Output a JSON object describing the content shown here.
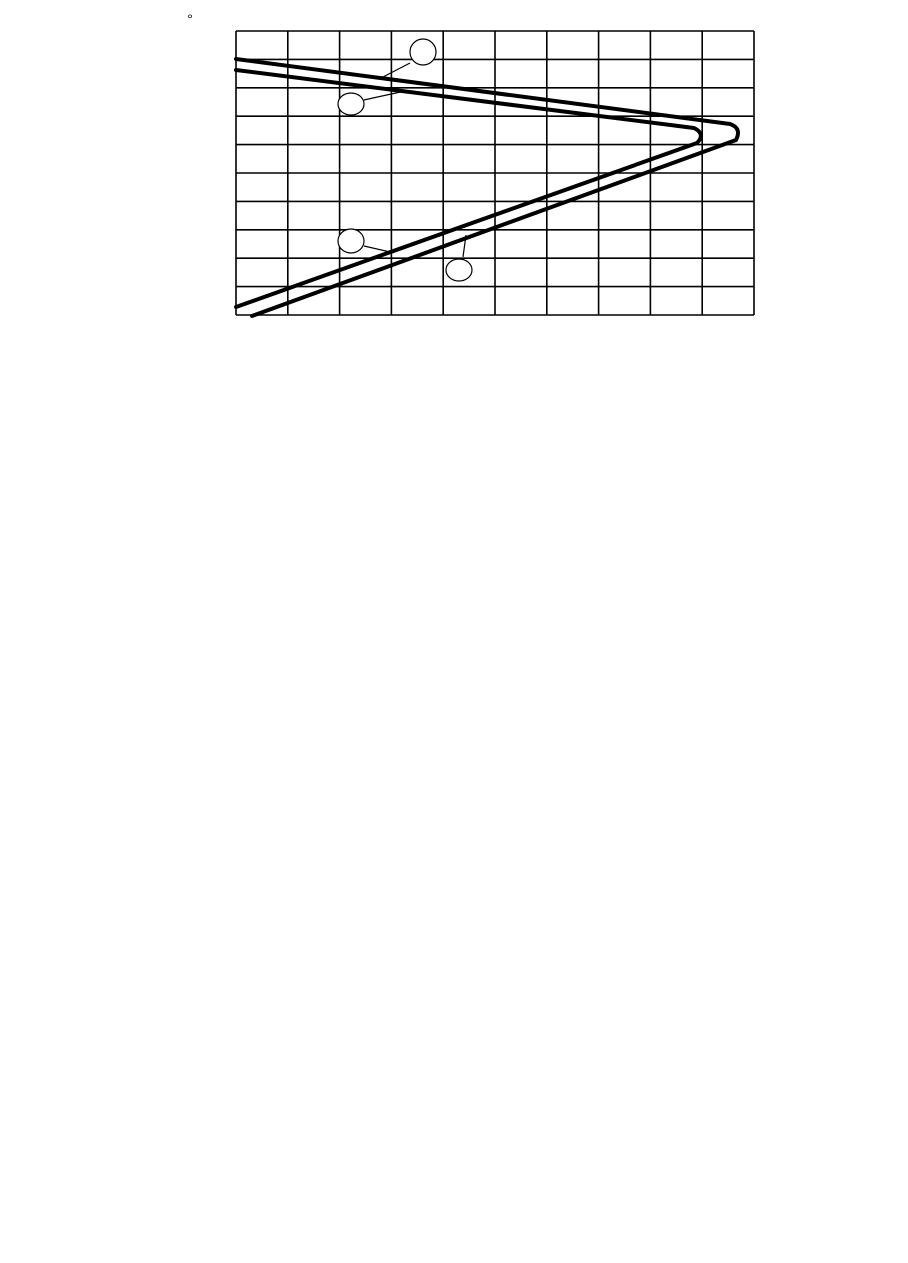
{
  "header": {
    "mark": "°"
  }
}
